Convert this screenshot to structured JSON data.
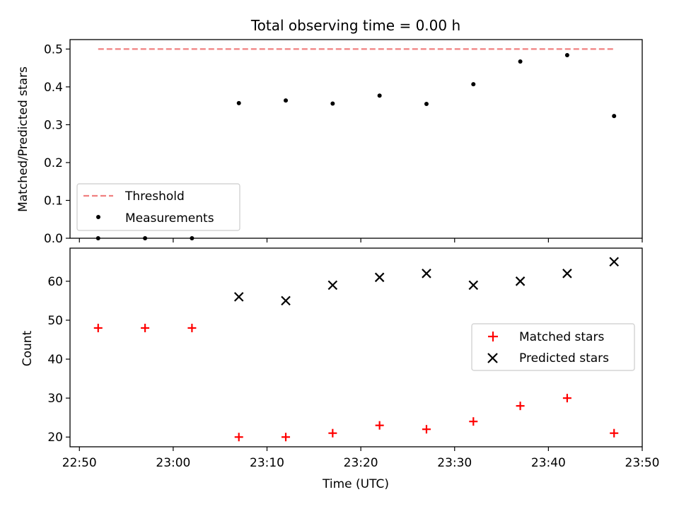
{
  "chart_data": [
    {
      "type": "scatter",
      "title": "Total observing time = 0.00 h",
      "ylabel": "Matched/Predicted stars",
      "ylim": [
        0,
        0.525
      ],
      "yticks": [
        "0.0",
        "0.1",
        "0.2",
        "0.3",
        "0.4",
        "0.5"
      ],
      "x": [
        "22:52",
        "22:57",
        "23:02",
        "23:07",
        "23:12",
        "23:17",
        "23:22",
        "23:27",
        "23:32",
        "23:37",
        "23:42",
        "23:47"
      ],
      "series": [
        {
          "name": "Threshold",
          "kind": "dashed-line",
          "color": "#f08080",
          "x": [
            "22:52",
            "23:47"
          ],
          "values": [
            0.5,
            0.5
          ]
        },
        {
          "name": "Measurements",
          "kind": "dot",
          "color": "#000000",
          "values": [
            0.0,
            0.0,
            0.0,
            0.357,
            0.364,
            0.356,
            0.377,
            0.355,
            0.407,
            0.467,
            0.484,
            0.323
          ]
        }
      ],
      "legend": "lower-left"
    },
    {
      "type": "scatter",
      "xlabel": "Time (UTC)",
      "ylabel": "Count",
      "ylim": [
        17.5,
        68.5
      ],
      "yticks": [
        "20",
        "30",
        "40",
        "50",
        "60"
      ],
      "xlim": [
        "22:49",
        "23:50"
      ],
      "xticks": [
        "22:50",
        "23:00",
        "23:10",
        "23:20",
        "23:30",
        "23:40",
        "23:50"
      ],
      "x": [
        "22:52",
        "22:57",
        "23:02",
        "23:07",
        "23:12",
        "23:17",
        "23:22",
        "23:27",
        "23:32",
        "23:37",
        "23:42",
        "23:47"
      ],
      "series": [
        {
          "name": "Matched stars",
          "marker": "plus",
          "color": "#ff0000",
          "values": [
            48,
            48,
            48,
            20,
            20,
            21,
            23,
            22,
            24,
            28,
            30,
            21
          ]
        },
        {
          "name": "Predicted stars",
          "marker": "x",
          "color": "#000000",
          "values": [
            null,
            null,
            null,
            56,
            55,
            59,
            61,
            62,
            59,
            60,
            62,
            65
          ]
        }
      ],
      "legend": "center-right"
    }
  ]
}
